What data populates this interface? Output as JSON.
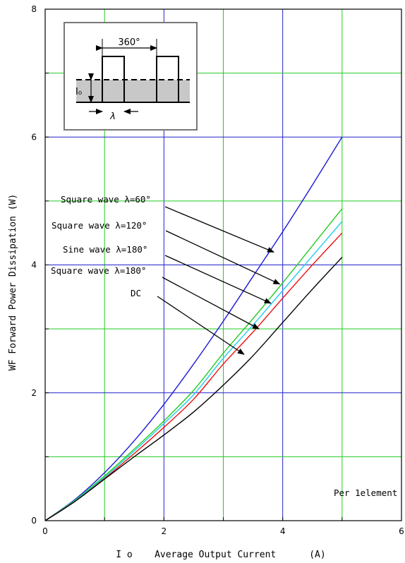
{
  "chart_data": {
    "type": "line",
    "xlabel": "I o    Average Output Current      (A)",
    "ylabel": "WF    Forward Power Dissipation      (W)",
    "xlim": [
      0,
      6
    ],
    "ylim": [
      0,
      8
    ],
    "xticks": [
      "0",
      "2",
      "4",
      "6"
    ],
    "yticks": [
      "0",
      "2",
      "4",
      "6",
      "8"
    ],
    "grid": true,
    "major_grid_color": "#2222cc",
    "minor_grid_color": "#22cc22",
    "annotation": "Per 1element",
    "inset": {
      "angle_label": "360°",
      "current_label": "I₀",
      "lambda_label": "λ"
    },
    "series": [
      {
        "name": "Square wave λ=60°",
        "color": "#1a1ad6",
        "x": [
          0,
          0.5,
          1,
          1.5,
          2,
          2.5,
          3,
          3.5,
          4,
          4.5,
          5
        ],
        "y": [
          0,
          0.33,
          0.75,
          1.25,
          1.82,
          2.45,
          3.12,
          3.82,
          4.52,
          5.25,
          6.0
        ],
        "arrow_to": [
          3.85,
          4.2
        ]
      },
      {
        "name": "Square wave λ=120°",
        "color": "#22cc22",
        "x": [
          0,
          0.5,
          1,
          1.5,
          2,
          2.5,
          3,
          3.5,
          4,
          4.5,
          5
        ],
        "y": [
          0,
          0.32,
          0.7,
          1.12,
          1.56,
          2.04,
          2.62,
          3.16,
          3.72,
          4.3,
          4.88
        ],
        "arrow_to": [
          3.95,
          3.7
        ]
      },
      {
        "name": "Sine wave λ=180°",
        "color": "#22ccee",
        "x": [
          0,
          0.5,
          1,
          1.5,
          2,
          2.5,
          3,
          3.5,
          4,
          4.5,
          5
        ],
        "y": [
          0,
          0.31,
          0.68,
          1.09,
          1.52,
          1.97,
          2.54,
          3.06,
          3.6,
          4.14,
          4.68
        ],
        "arrow_to": [
          3.8,
          3.4
        ]
      },
      {
        "name": "Square wave λ=180°",
        "color": "#ee1111",
        "x": [
          0,
          0.5,
          1,
          1.5,
          2,
          2.5,
          3,
          3.5,
          4,
          4.5,
          5
        ],
        "y": [
          0,
          0.3,
          0.66,
          1.05,
          1.46,
          1.9,
          2.45,
          2.95,
          3.48,
          4.0,
          4.5
        ],
        "arrow_to": [
          3.6,
          3.0
        ]
      },
      {
        "name": "DC",
        "color": "#000000",
        "x": [
          0,
          0.5,
          1,
          1.5,
          2,
          2.5,
          3,
          3.5,
          4,
          4.5,
          5
        ],
        "y": [
          0,
          0.3,
          0.65,
          1.0,
          1.34,
          1.7,
          2.12,
          2.58,
          3.1,
          3.62,
          4.12
        ],
        "arrow_to": [
          3.35,
          2.6
        ]
      }
    ]
  }
}
